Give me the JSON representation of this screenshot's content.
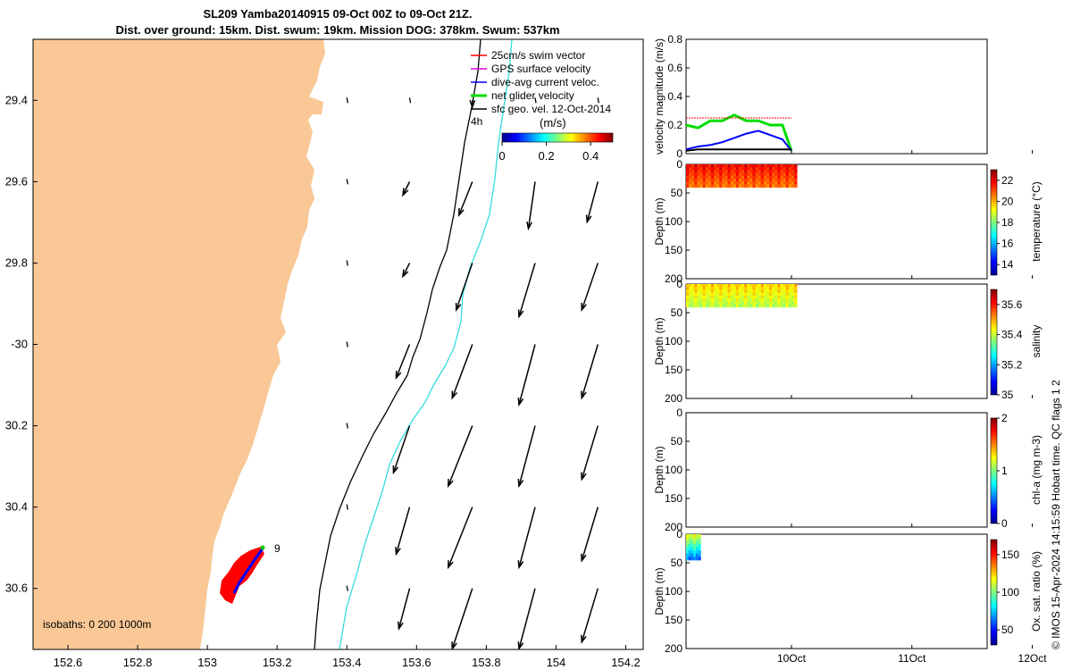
{
  "title": {
    "line1": "SL209 Yamba20140915 09-Oct 00Z to 09-Oct 21Z.",
    "line2": "Dist. over ground: 15km. Dist. swum: 19km. Mission DOG: 378km. Swum: 537km"
  },
  "credit": "© IMOS 15-Apr-2024 14:15:59 Hobart time. QC flags 1  2",
  "colors": {
    "land": "#f9c896",
    "isobath_200": "#000000",
    "isobath_1000": "#33dddd",
    "track_red": "#ff0000",
    "track_blue": "#0000ff",
    "net_velocity": "#00dd00",
    "swim_vector": "#ff0000",
    "gps_velocity": "#dd00dd",
    "dive_avg": "#0000ff"
  },
  "chart_data": [
    {
      "id": "map",
      "type": "map",
      "xlabel_ticks": [
        "152.6",
        "152.8",
        "153",
        "153.2",
        "153.4",
        "153.6",
        "153.8",
        "154",
        "154.2"
      ],
      "ylabel_ticks": [
        "29.4",
        "29.6",
        "29.8",
        "-30",
        "30.2",
        "30.4",
        "30.6"
      ],
      "lon_range": [
        152.5,
        154.25
      ],
      "lat_range": [
        -29.25,
        -30.75
      ],
      "legend": [
        "25cm/s swim vector",
        "GPS surface velocity",
        "dive-avg current veloc.",
        "net glider velocity",
        "sfc geo. vel. 12-Oct-2014"
      ],
      "colorbar": {
        "label": "(m/s)",
        "ticks": [
          "0",
          "0.2",
          "0.4"
        ],
        "range": [
          0,
          0.5
        ]
      },
      "annotations": {
        "track_start_label": "9",
        "time_label": "4h",
        "isobaths": "isobaths: 0   200  1000m"
      },
      "current_vectors": {
        "lon": [
          153.4,
          153.58,
          153.76,
          153.94,
          154.12
        ],
        "lat": [
          -29.4,
          -29.6,
          -29.8,
          -30.0,
          -30.2,
          -30.4,
          -30.6
        ],
        "u_m_s": [
          [
            0,
            0,
            0,
            0,
            0
          ],
          [
            0,
            -0.05,
            -0.1,
            -0.05,
            -0.08
          ],
          [
            0,
            -0.05,
            -0.12,
            -0.12,
            -0.12
          ],
          [
            0,
            -0.1,
            -0.15,
            -0.12,
            -0.12
          ],
          [
            0,
            -0.12,
            -0.18,
            -0.12,
            -0.12
          ],
          [
            0,
            -0.1,
            -0.18,
            -0.12,
            -0.12
          ],
          [
            0,
            -0.08,
            -0.15,
            -0.12,
            -0.12
          ]
        ],
        "v_m_s": [
          [
            0,
            0,
            -0.05,
            0,
            0
          ],
          [
            0,
            -0.1,
            -0.25,
            -0.35,
            -0.3
          ],
          [
            0,
            -0.1,
            -0.35,
            -0.4,
            -0.35
          ],
          [
            0,
            -0.25,
            -0.4,
            -0.45,
            -0.4
          ],
          [
            0,
            -0.35,
            -0.45,
            -0.45,
            -0.4
          ],
          [
            0,
            -0.35,
            -0.45,
            -0.45,
            -0.4
          ],
          [
            0,
            -0.3,
            -0.45,
            -0.45,
            -0.4
          ]
        ]
      }
    },
    {
      "id": "velocity",
      "type": "line",
      "ylabel": "velocity magnitude (m/s)",
      "yticks": [
        "0",
        "0.2",
        "0.4",
        "0.6",
        "0.8"
      ],
      "ylim": [
        0,
        0.8
      ],
      "x_days": [
        0,
        0.1,
        0.2,
        0.3,
        0.4,
        0.5,
        0.6,
        0.7,
        0.8,
        0.875
      ],
      "series": [
        {
          "name": "net glider velocity",
          "values": [
            0.2,
            0.18,
            0.23,
            0.23,
            0.27,
            0.23,
            0.23,
            0.2,
            0.2,
            0.02
          ]
        },
        {
          "name": "dive-avg current veloc.",
          "values": [
            0.03,
            0.05,
            0.06,
            0.08,
            0.11,
            0.14,
            0.16,
            0.13,
            0.1,
            0.02
          ]
        },
        {
          "name": "25cm/s swim vector",
          "values": [
            0.25,
            0.25,
            0.25,
            0.25,
            0.25,
            0.25,
            0.25,
            0.25,
            0.25,
            0.25
          ]
        },
        {
          "name": "sfc geo. vel.",
          "values": [
            0.02,
            0.03,
            0.03,
            0.03,
            0.03,
            0.03,
            0.03,
            0.03,
            0.03,
            0.03
          ]
        }
      ]
    },
    {
      "id": "temperature",
      "type": "heatmap",
      "ylabel": "Depth (m)",
      "yticks": [
        "0",
        "50",
        "100",
        "150",
        "200"
      ],
      "ylim": [
        0,
        200
      ],
      "colorbar_label": "temperature (°C)",
      "colorbar_ticks": [
        "14",
        "16",
        "18",
        "20",
        "22"
      ],
      "crange": [
        13,
        23
      ],
      "data_depth_max_m": 40,
      "mean_value": 21.5
    },
    {
      "id": "salinity",
      "type": "heatmap",
      "ylabel": "Depth (m)",
      "yticks": [
        "0",
        "50",
        "100",
        "150",
        "200"
      ],
      "ylim": [
        0,
        200
      ],
      "colorbar_label": "salinity",
      "colorbar_ticks": [
        "35",
        "35.2",
        "35.4",
        "35.6"
      ],
      "crange": [
        35,
        35.7
      ],
      "data_depth_max_m": 40,
      "mean_value": 35.45
    },
    {
      "id": "chl",
      "type": "heatmap",
      "ylabel": "Depth (m)",
      "yticks": [
        "0",
        "50",
        "100",
        "150",
        "200"
      ],
      "ylim": [
        0,
        200
      ],
      "colorbar_label": "chl-a (mg m-3)",
      "colorbar_ticks": [
        "0",
        "1",
        "2"
      ],
      "crange": [
        0,
        2
      ],
      "data_depth_max_m": 0
    },
    {
      "id": "oxygen",
      "type": "heatmap",
      "ylabel": "Depth (m)",
      "yticks": [
        "0",
        "50",
        "100",
        "150",
        "200"
      ],
      "ylim": [
        0,
        200
      ],
      "colorbar_label": "Ox. sat. ratio (%)",
      "colorbar_ticks": [
        "50",
        "100",
        "150"
      ],
      "crange": [
        30,
        170
      ],
      "data_depth_max_m": 45,
      "mean_value": 110
    }
  ],
  "time_axis": {
    "ticks": [
      "10Oct",
      "11Oct",
      "12Oct"
    ],
    "range_days": [
      0,
      2.5
    ]
  }
}
